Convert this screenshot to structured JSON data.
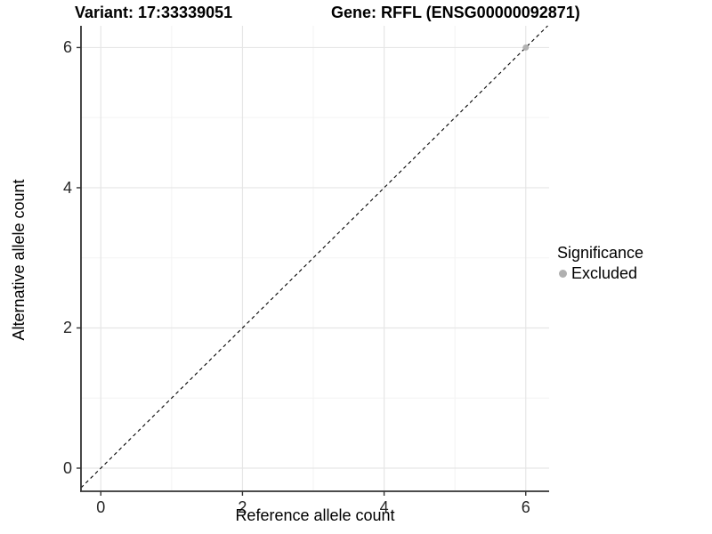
{
  "chart_data": {
    "type": "scatter",
    "title_left": "Variant: 17:33339051",
    "title_right": "Gene: RFFL (ENSG00000092871)",
    "xlabel": "Reference allele count",
    "ylabel": "Alternative allele count",
    "xlim": [
      -0.28,
      6.33
    ],
    "ylim": [
      -0.33,
      6.31
    ],
    "x_ticks": [
      0,
      2,
      4,
      6
    ],
    "y_ticks": [
      0,
      2,
      4,
      6
    ],
    "x_minor_ticks": [
      1,
      3,
      5
    ],
    "y_minor_ticks": [
      1,
      3,
      5
    ],
    "grid": true,
    "points": [
      {
        "x": 6,
        "y": 6,
        "series": "Excluded"
      }
    ],
    "reference_line": {
      "style": "dashed",
      "slope": 1,
      "intercept": 0
    },
    "legend": {
      "title": "Significance",
      "position": "right",
      "items": [
        {
          "label": "Excluded",
          "color": "#b0b0b0"
        }
      ]
    }
  },
  "colors": {
    "background": "#ffffff",
    "grid_major": "#e6e6e6",
    "grid_minor": "#f3f3f3",
    "axis_line": "#333333",
    "tick_text": "#262626",
    "dashed_line": "#000000",
    "excluded_point": "#b0b0b0"
  }
}
